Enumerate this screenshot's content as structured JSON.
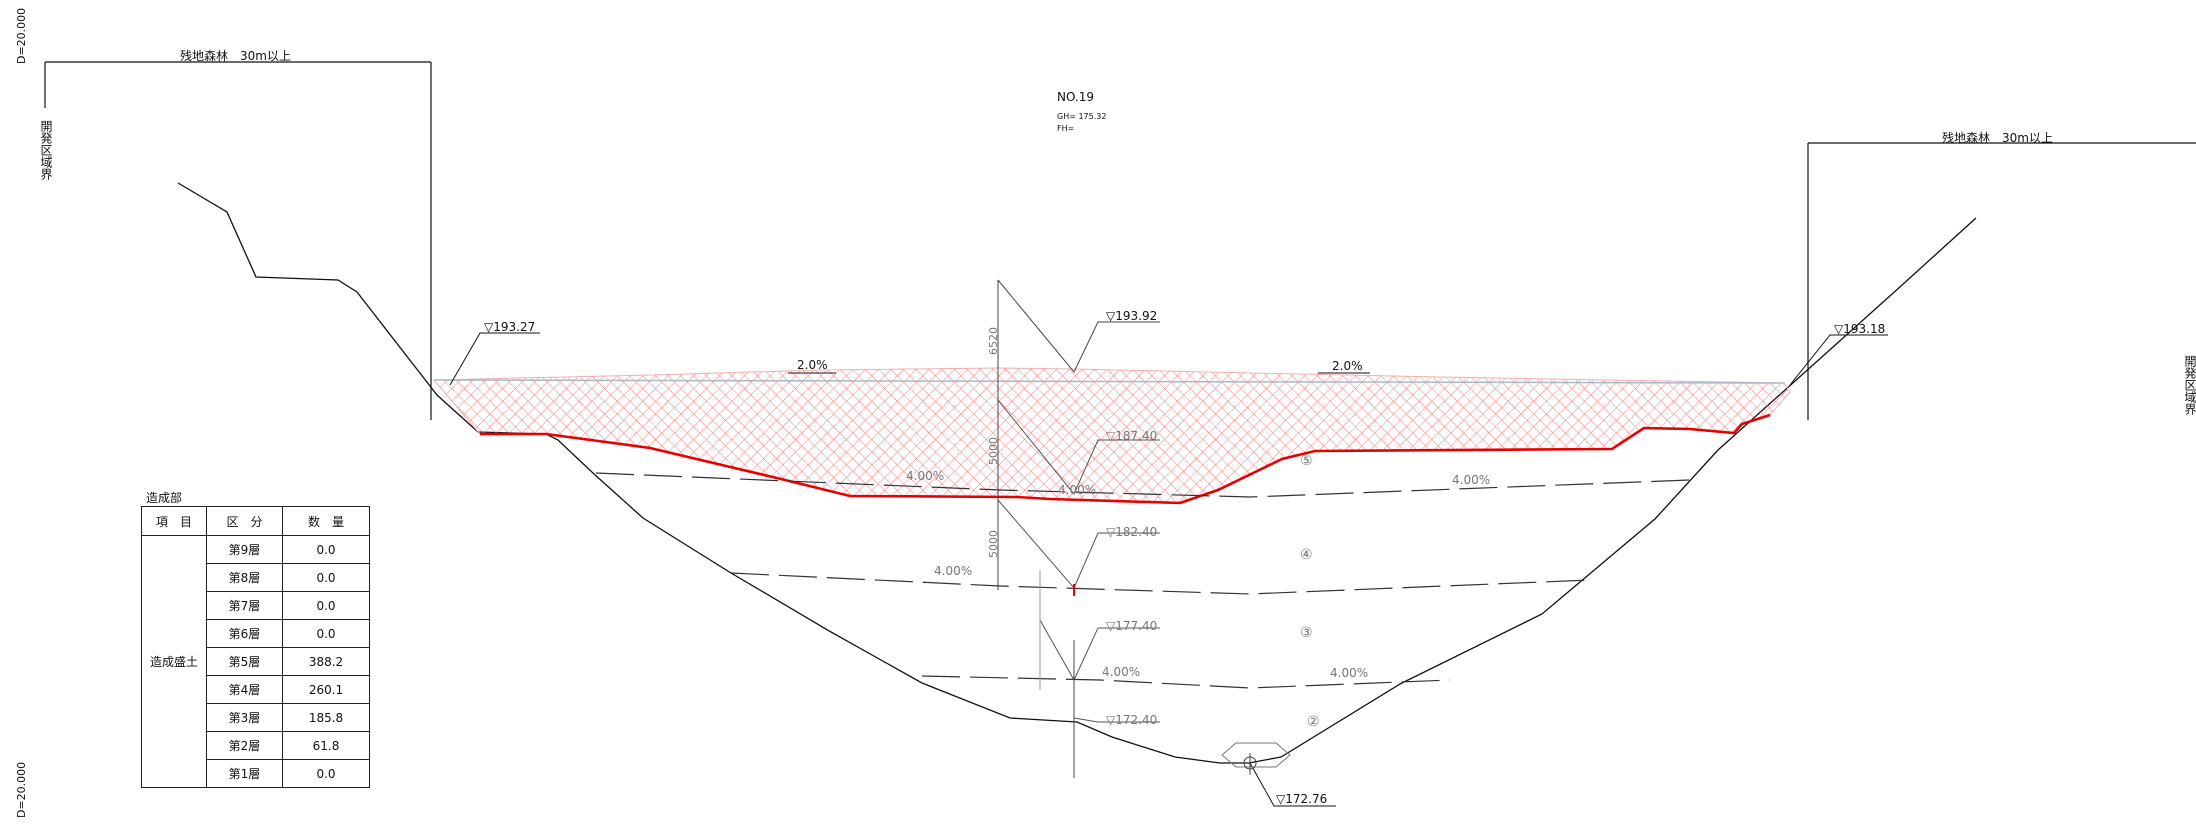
{
  "drawing": {
    "scale_left_top": "D=20.000",
    "scale_left_bottom": "D=20.000",
    "section_no": "NO.19",
    "gh": "GH= 175.32",
    "fh": "FH="
  },
  "boundary": {
    "left_label": "開発区域界",
    "right_label": "開発区域界",
    "forest_left": "残地森林　30m以上",
    "forest_right": "残地森林　30m以上"
  },
  "elevations": {
    "left_crest": "▽193.27",
    "center_top": "▽193.92",
    "right_crest": "▽193.18",
    "bench1": "▽187.40",
    "bench2": "▽182.40",
    "bench3": "▽177.40",
    "bench4": "▽172.40",
    "bottom": "▽172.76"
  },
  "slopes": {
    "top_left": "2.0%",
    "top_right": "2.0%",
    "l5_left": "4.00%",
    "l5_center": "4.00%",
    "l5_right": "4.00%",
    "l4_left": "4.00%",
    "l3_left": "4.00%",
    "l3_right": "4.00%"
  },
  "dims": {
    "d1": "6520",
    "d2": "5000",
    "d3": "5000"
  },
  "layers": {
    "five": "⑤",
    "four": "④",
    "three": "③",
    "two": "②"
  },
  "volume_table": {
    "caption": "造成部",
    "headers": [
      "項　目",
      "区　分",
      "数　量"
    ],
    "item": "造成盛土",
    "rows": [
      {
        "layer": "第9層",
        "qty": "0.0"
      },
      {
        "layer": "第8層",
        "qty": "0.0"
      },
      {
        "layer": "第7層",
        "qty": "0.0"
      },
      {
        "layer": "第6層",
        "qty": "0.0"
      },
      {
        "layer": "第5層",
        "qty": "388.2"
      },
      {
        "layer": "第4層",
        "qty": "260.1"
      },
      {
        "layer": "第3層",
        "qty": "185.8"
      },
      {
        "layer": "第2層",
        "qty": "61.8"
      },
      {
        "layer": "第1層",
        "qty": "0.0"
      }
    ]
  },
  "colors": {
    "fill_hatch": "#ff5a5a",
    "fill_edge": "#e60000",
    "line": "#111111",
    "grey": "#777777"
  }
}
